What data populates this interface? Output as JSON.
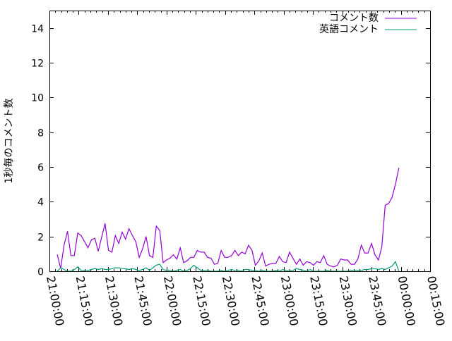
{
  "chart_data": {
    "type": "line",
    "title": "",
    "xlabel": "",
    "ylabel": "1秒毎のコメント数",
    "ylim": [
      0,
      15
    ],
    "yticks": [
      "0",
      "2",
      "4",
      "6",
      "8",
      "10",
      "12",
      "14"
    ],
    "xlim": [
      "21:00:00",
      "00:15:00"
    ],
    "xticks": [
      "21:00:00",
      "21:15:00",
      "21:30:00",
      "21:45:00",
      "22:00:00",
      "22:15:00",
      "22:30:00",
      "22:45:00",
      "23:00:00",
      "23:15:00",
      "23:30:00",
      "23:45:00",
      "00:00:00",
      "00:15:00"
    ],
    "grid": false,
    "legend_position": "top-right",
    "x": [
      "21:04:00",
      "21:05:45",
      "21:07:30",
      "21:09:15",
      "21:11:00",
      "21:12:45",
      "21:14:30",
      "21:16:15",
      "21:18:00",
      "21:19:45",
      "21:21:30",
      "21:23:15",
      "21:25:00",
      "21:26:45",
      "21:28:30",
      "21:30:15",
      "21:32:00",
      "21:33:45",
      "21:35:30",
      "21:37:15",
      "21:39:00",
      "21:40:45",
      "21:42:30",
      "21:44:15",
      "21:46:00",
      "21:47:45",
      "21:49:30",
      "21:51:15",
      "21:53:00",
      "21:54:45",
      "21:56:30",
      "21:58:15",
      "22:00:00",
      "22:01:45",
      "22:03:30",
      "22:05:15",
      "22:07:00",
      "22:08:45",
      "22:10:30",
      "22:12:15",
      "22:14:00",
      "22:15:45",
      "22:17:30",
      "22:19:15",
      "22:21:00",
      "22:22:45",
      "22:24:30",
      "22:26:15",
      "22:28:00",
      "22:29:45",
      "22:31:30",
      "22:33:15",
      "22:35:00",
      "22:36:45",
      "22:38:30",
      "22:40:15",
      "22:42:00",
      "22:43:45",
      "22:45:30",
      "22:47:15",
      "22:49:00",
      "22:50:45",
      "22:52:30",
      "22:54:15",
      "22:56:00",
      "22:57:45",
      "22:59:30",
      "23:01:15",
      "23:03:00",
      "23:04:45",
      "23:06:30",
      "23:08:15",
      "23:10:00",
      "23:11:45",
      "23:13:30",
      "23:15:15",
      "23:17:00",
      "23:18:45",
      "23:20:30",
      "23:22:15",
      "23:24:00",
      "23:25:45",
      "23:27:30",
      "23:29:15",
      "23:31:00",
      "23:32:45",
      "23:34:30",
      "23:36:15",
      "23:38:00",
      "23:39:45",
      "23:41:30",
      "23:43:15",
      "23:45:00",
      "23:46:45",
      "23:48:30",
      "23:50:15",
      "23:52:00",
      "23:53:45",
      "23:55:30",
      "23:57:15",
      "23:59:00"
    ],
    "series": [
      {
        "name": "コメント数",
        "color": "#9400d3",
        "values": [
          0.97,
          0.16,
          1.5,
          2.3,
          0.9,
          0.9,
          2.2,
          2.05,
          1.7,
          1.35,
          1.8,
          1.9,
          1.15,
          1.95,
          2.75,
          1.2,
          1.1,
          2.05,
          1.6,
          2.25,
          1.85,
          2.45,
          2.05,
          1.7,
          0.8,
          1.3,
          2.0,
          0.9,
          0.8,
          2.6,
          2.35,
          0.5,
          0.65,
          0.75,
          0.95,
          0.7,
          1.35,
          0.5,
          0.6,
          0.8,
          0.8,
          1.2,
          1.1,
          1.1,
          0.8,
          0.75,
          0.4,
          0.45,
          1.2,
          0.8,
          0.8,
          0.9,
          1.2,
          0.9,
          1.1,
          1.0,
          1.5,
          1.2,
          0.35,
          0.6,
          1.05,
          0.3,
          0.4,
          0.45,
          0.45,
          0.85,
          0.55,
          0.5,
          1.1,
          0.75,
          0.4,
          0.7,
          0.35,
          0.55,
          0.5,
          0.35,
          0.55,
          0.5,
          0.9,
          0.4,
          0.3,
          0.25,
          0.35,
          0.7,
          0.65,
          0.65,
          0.4,
          0.4,
          0.7,
          1.5,
          1.05,
          1.05,
          1.6,
          0.95,
          0.65,
          1.4,
          3.8,
          3.9,
          4.25,
          5.0,
          5.95
        ]
      },
      {
        "name": "英語コメント",
        "color": "#009e73",
        "values": [
          0.0,
          0.2,
          0.1,
          0.0,
          0.0,
          0.1,
          0.25,
          0.05,
          0.05,
          0.05,
          0.1,
          0.15,
          0.1,
          0.15,
          0.1,
          0.1,
          0.15,
          0.2,
          0.2,
          0.15,
          0.15,
          0.1,
          0.15,
          0.1,
          0.05,
          0.1,
          0.2,
          0.05,
          0.2,
          0.35,
          0.4,
          0.1,
          0.05,
          0.05,
          0.0,
          0.05,
          0.1,
          0.0,
          0.05,
          0.15,
          0.35,
          0.2,
          0.05,
          0.05,
          0.05,
          0.0,
          0.0,
          0.0,
          0.05,
          0.0,
          0.05,
          0.1,
          0.05,
          0.05,
          0.0,
          0.1,
          0.1,
          0.05,
          0.05,
          0.0,
          0.05,
          0.0,
          0.0,
          0.0,
          0.05,
          0.0,
          0.1,
          0.05,
          0.0,
          0.05,
          0.15,
          0.1,
          0.05,
          0.0,
          0.1,
          0.0,
          0.0,
          0.0,
          0.0,
          0.05,
          0.0,
          0.0,
          0.0,
          0.0,
          0.0,
          0.0,
          0.05,
          0.05,
          0.05,
          0.05,
          0.1,
          0.1,
          0.15,
          0.15,
          0.1,
          0.15,
          0.1,
          0.2,
          0.3,
          0.55,
          0.0
        ]
      }
    ]
  }
}
